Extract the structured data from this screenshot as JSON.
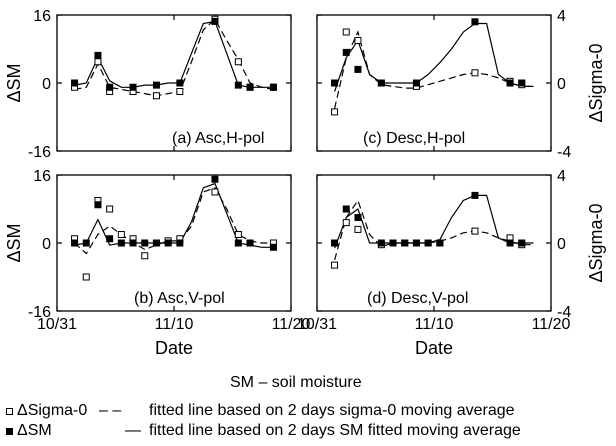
{
  "chart_data": [
    {
      "id": "a",
      "type": "scatter",
      "annotation": "(a) Asc,H-pol",
      "ylabel": "ΔSM",
      "ylabel_right": "",
      "xlabel": "",
      "xlim": [
        "10/31",
        "11/20"
      ],
      "ylim": [
        -16,
        16
      ],
      "xtick_labels": [],
      "ytick_labels": [
        "16",
        "0",
        "-16"
      ],
      "ytick_labels_right": [],
      "grid": false,
      "series": [
        {
          "name": "ΔSigma-0",
          "marker": "open-square",
          "x": [
            1.5,
            3.5,
            4.5,
            6.5,
            8.5,
            10.5,
            13.5,
            15.5,
            16.5,
            18.5
          ],
          "y": [
            -1,
            5,
            -2,
            -2,
            -3,
            -2,
            15,
            5,
            -1,
            -1
          ]
        },
        {
          "name": "ΔSM",
          "marker": "filled-square",
          "x": [
            1.5,
            3.5,
            4.5,
            6.5,
            8.5,
            10.5,
            13.5,
            15.5,
            16.5,
            18.5
          ],
          "y": [
            0,
            6.5,
            -1,
            -1,
            -0.5,
            0,
            14.5,
            -0.5,
            -1,
            -1
          ]
        },
        {
          "name": "fitted line based on 2 days sigma-0 moving average",
          "style": "dashed",
          "x": [
            1.5,
            2.5,
            3.5,
            4.5,
            5.5,
            6.5,
            7.5,
            8.5,
            9.5,
            10.5,
            11.5,
            12.5,
            13.5,
            14.5,
            15.5,
            16.5,
            17.5,
            18.5
          ],
          "y": [
            -1.5,
            -1,
            4.5,
            -1,
            -1.5,
            -2,
            -2.5,
            -3,
            -2.5,
            -2,
            5,
            12.5,
            15,
            10,
            5.5,
            0,
            -1,
            -1.5
          ]
        },
        {
          "name": "fitted line based on 2 days SM fitted moving average",
          "style": "solid",
          "x": [
            1.5,
            2.5,
            3.5,
            4.5,
            5.5,
            6.5,
            7.5,
            8.5,
            9.5,
            10.5,
            11.5,
            12.5,
            13.5,
            14.5,
            15.5,
            16.5,
            17.5,
            18.5
          ],
          "y": [
            -0.5,
            0,
            6,
            0.5,
            -1,
            -1,
            -0.5,
            -0.5,
            0,
            0,
            7,
            14,
            14.5,
            7,
            -0.5,
            -1,
            -1,
            -1
          ]
        }
      ]
    },
    {
      "id": "c",
      "type": "scatter",
      "annotation": "(c) Desc,H-pol",
      "ylabel": "",
      "ylabel_right": "ΔSigma-0",
      "xlabel": "",
      "xlim": [
        "10/31",
        "11/20"
      ],
      "ylim": [
        -4,
        4
      ],
      "xtick_labels": [],
      "ytick_labels": [],
      "ytick_labels_right": [
        "4",
        "0",
        "-4"
      ],
      "grid": false,
      "series": [
        {
          "name": "ΔSigma-0",
          "marker": "open-square",
          "x": [
            1.5,
            2.5,
            3.5,
            5.5,
            8.5,
            13.5,
            16.5,
            17.5
          ],
          "y": [
            -1.7,
            3,
            2.5,
            0,
            -0.2,
            0.6,
            0.1,
            -0.1
          ]
        },
        {
          "name": "ΔSM",
          "marker": "filled-square",
          "x": [
            1.5,
            2.5,
            3.5,
            5.5,
            8.5,
            13.5,
            16.5,
            17.5
          ],
          "y": [
            0,
            1.8,
            0.8,
            0,
            0,
            3.6,
            0,
            0
          ]
        },
        {
          "name": "fitted line based on 2 days sigma-0 moving average",
          "style": "dashed",
          "x": [
            1.5,
            2.5,
            3.5,
            4.5,
            5.5,
            6.5,
            7.5,
            8.5,
            9.5,
            10.5,
            11.5,
            12.5,
            13.5,
            14.5,
            15.5,
            16.5,
            17.5,
            18.5
          ],
          "y": [
            -1.5,
            1.5,
            3,
            0.5,
            -0.1,
            -0.2,
            -0.3,
            -0.3,
            -0.1,
            0.1,
            0.3,
            0.5,
            0.6,
            0.5,
            0.3,
            0,
            -0.2,
            -0.2
          ]
        },
        {
          "name": "fitted line based on 2 days SM fitted moving average",
          "style": "solid",
          "x": [
            1.5,
            2.5,
            3.5,
            4.5,
            5.5,
            6.5,
            7.5,
            8.5,
            9.5,
            10.5,
            11.5,
            12.5,
            13.5,
            14.5,
            15.5,
            16.5,
            17.5,
            18.5
          ],
          "y": [
            -0.5,
            1.5,
            2.5,
            0.5,
            0,
            0,
            0,
            0,
            0.5,
            1.2,
            2,
            3,
            3.5,
            3.5,
            0.5,
            0,
            -0.2,
            -0.2
          ]
        }
      ]
    },
    {
      "id": "b",
      "type": "scatter",
      "annotation": "(b) Asc,V-pol",
      "ylabel": "ΔSM",
      "ylabel_right": "",
      "xlabel": "Date",
      "xlim": [
        "10/31",
        "11/20"
      ],
      "ylim": [
        -16,
        16
      ],
      "xtick_labels": [
        "10/31",
        "11/10",
        "11/20"
      ],
      "ytick_labels": [
        "16",
        "0",
        "-16"
      ],
      "ytick_labels_right": [],
      "grid": false,
      "series": [
        {
          "name": "ΔSigma-0",
          "marker": "open-square",
          "x": [
            1.5,
            2.5,
            3.5,
            4.5,
            5.5,
            6.5,
            7.5,
            8.5,
            9.5,
            10.5,
            13.5,
            15.5,
            16.5,
            18.5
          ],
          "y": [
            1,
            -8,
            10,
            8,
            2,
            1,
            -3,
            0,
            0.5,
            1,
            12,
            2,
            0,
            0
          ]
        },
        {
          "name": "ΔSM",
          "marker": "filled-square",
          "x": [
            1.5,
            2.5,
            3.5,
            4.5,
            5.5,
            6.5,
            7.5,
            8.5,
            9.5,
            10.5,
            13.5,
            15.5,
            16.5,
            18.5
          ],
          "y": [
            0,
            0,
            9,
            1,
            0,
            0,
            0,
            0,
            0,
            0,
            15,
            0,
            0,
            -1
          ]
        },
        {
          "name": "fitted line based on 2 days sigma-0 moving average",
          "style": "dashed",
          "x": [
            1.5,
            2.5,
            3.5,
            4.5,
            5.5,
            6.5,
            7.5,
            8.5,
            9.5,
            10.5,
            11.5,
            12.5,
            13.5,
            14.5,
            15.5,
            16.5,
            17.5,
            18.5
          ],
          "y": [
            0,
            -2.5,
            2,
            4,
            2,
            0,
            -1.5,
            -0.5,
            0.5,
            0.5,
            4,
            12,
            13,
            8,
            2,
            0.5,
            0,
            0
          ]
        },
        {
          "name": "fitted line based on 2 days SM fitted moving average",
          "style": "solid",
          "x": [
            1.5,
            2.5,
            3.5,
            4.5,
            5.5,
            6.5,
            7.5,
            8.5,
            9.5,
            10.5,
            11.5,
            12.5,
            13.5,
            14.5,
            15.5,
            16.5,
            17.5,
            18.5
          ],
          "y": [
            -0.5,
            0,
            5.5,
            -0.5,
            0,
            0,
            0,
            0,
            0,
            0,
            5,
            13,
            14,
            7,
            0,
            -0.5,
            -1,
            -1
          ]
        }
      ]
    },
    {
      "id": "d",
      "type": "scatter",
      "annotation": "(d) Desc,V-pol",
      "ylabel": "",
      "ylabel_right": "ΔSigma-0",
      "xlabel": "Date",
      "xlim": [
        "10/31",
        "11/20"
      ],
      "ylim": [
        -4,
        4
      ],
      "xtick_labels": [
        "10/31",
        "11/10",
        "11/20"
      ],
      "ytick_labels": [],
      "ytick_labels_right": [
        "4",
        "0",
        "-4"
      ],
      "grid": false,
      "series": [
        {
          "name": "ΔSigma-0",
          "marker": "open-square",
          "x": [
            1.5,
            2.5,
            3.5,
            5.5,
            6.5,
            7.5,
            8.5,
            9.5,
            10.5,
            13.5,
            16.5,
            17.5
          ],
          "y": [
            -1.3,
            1.2,
            0.8,
            -0.1,
            0,
            0,
            0,
            0,
            0,
            0.7,
            0.3,
            -0.1
          ]
        },
        {
          "name": "ΔSM",
          "marker": "filled-square",
          "x": [
            1.5,
            2.5,
            3.5,
            5.5,
            6.5,
            7.5,
            8.5,
            9.5,
            10.5,
            13.5,
            16.5,
            17.5
          ],
          "y": [
            0,
            2,
            1.5,
            0,
            0,
            0,
            0,
            0,
            0,
            2.8,
            0,
            0
          ]
        },
        {
          "name": "fitted line based on 2 days sigma-0 moving average",
          "style": "dashed",
          "x": [
            1.5,
            2.5,
            3.5,
            4.5,
            5.5,
            6.5,
            7.5,
            8.5,
            9.5,
            10.5,
            11.5,
            12.5,
            13.5,
            14.5,
            15.5,
            16.5,
            17.5,
            18.5
          ],
          "y": [
            -1,
            1.5,
            2.5,
            0.5,
            -0.2,
            0,
            0,
            0,
            0,
            0.1,
            0.3,
            0.6,
            0.7,
            0.6,
            0.3,
            0.1,
            -0.1,
            -0.1
          ]
        },
        {
          "name": "fitted line based on 2 days SM fitted moving average",
          "style": "solid",
          "x": [
            1.5,
            2.5,
            3.5,
            4.5,
            5.5,
            6.5,
            7.5,
            8.5,
            9.5,
            10.5,
            11.5,
            12.5,
            13.5,
            14.5,
            15.5,
            16.5,
            17.5,
            18.5
          ],
          "y": [
            -0.3,
            1.5,
            2,
            0,
            0,
            0,
            0,
            0,
            0,
            0.2,
            1.5,
            2.5,
            2.8,
            2.8,
            0.3,
            0,
            0,
            0
          ]
        }
      ]
    }
  ],
  "legend": {
    "title": "SM – soil moisture",
    "items": [
      {
        "symbol": "open-square",
        "name": "ΔSigma-0",
        "line": "– –",
        "description": "fitted line based on 2 days sigma-0 moving average"
      },
      {
        "symbol": "filled-square",
        "name": "ΔSM",
        "line": "—",
        "description": "fitted line based on 2 days SM fitted moving average"
      }
    ]
  }
}
